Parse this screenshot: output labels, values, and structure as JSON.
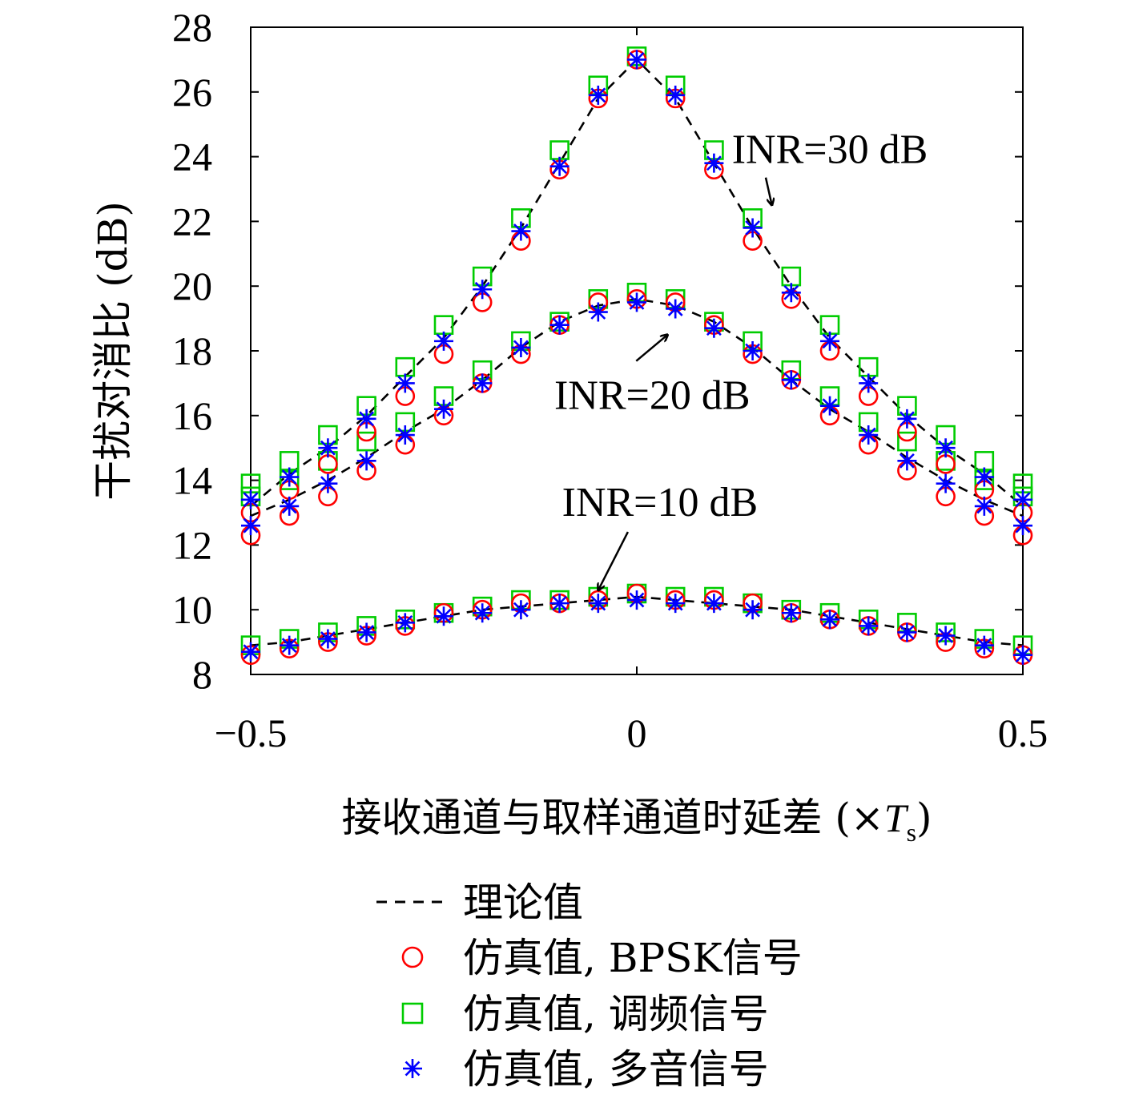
{
  "chart_data": {
    "type": "scatter",
    "xlabel": "接收通道与取样通道时延差 (×",
    "xlabel_unit_main": "T",
    "xlabel_unit_sub": "s",
    "xlabel_close": ")",
    "ylabel": "干扰对消比 (dB)",
    "xlim": [
      -0.5,
      0.5
    ],
    "ylim": [
      8,
      28
    ],
    "x_ticks": [
      -0.5,
      0,
      0.5
    ],
    "x_tick_labels": [
      "−0.5",
      "0",
      "0.5"
    ],
    "y_ticks": [
      8,
      10,
      12,
      14,
      16,
      18,
      20,
      22,
      24,
      26,
      28
    ],
    "grid": false,
    "legend_position": "below",
    "annotations": [
      {
        "text": "INR=30 dB",
        "x": 0.25,
        "y": 23.8,
        "arrow_to_x": 0.175,
        "arrow_to_y": 22.5
      },
      {
        "text": "INR=20 dB",
        "x": 0.02,
        "y": 16.2,
        "arrow_to_x": 0.04,
        "arrow_to_y": 18.5
      },
      {
        "text": "INR=10 dB",
        "x": 0.03,
        "y": 12.9,
        "arrow_to_x": -0.05,
        "arrow_to_y": 10.6
      }
    ],
    "x": [
      -0.5,
      -0.45,
      -0.4,
      -0.35,
      -0.3,
      -0.25,
      -0.2,
      -0.15,
      -0.1,
      -0.05,
      0,
      0.05,
      0.1,
      0.15,
      0.2,
      0.25,
      0.3,
      0.35,
      0.4,
      0.45,
      0.5
    ],
    "series": [
      {
        "name": "理论值",
        "style": "dashed-line",
        "color": "#000000",
        "groups": [
          {
            "inr": "INR=30 dB",
            "values": [
              13.2,
              14.2,
              15.0,
              16.0,
              17.2,
              18.4,
              20.0,
              21.8,
              23.8,
              25.8,
              27.0,
              25.8,
              23.8,
              21.8,
              20.0,
              18.4,
              17.2,
              16.0,
              15.0,
              14.2,
              13.2
            ]
          },
          {
            "inr": "INR=20 dB",
            "values": [
              12.9,
              13.4,
              14.0,
              14.7,
              15.5,
              16.2,
              17.1,
              18.1,
              18.9,
              19.4,
              19.6,
              19.4,
              18.9,
              18.1,
              17.1,
              16.2,
              15.5,
              14.7,
              14.0,
              13.4,
              12.9
            ]
          },
          {
            "inr": "INR=10 dB",
            "values": [
              8.9,
              9.0,
              9.2,
              9.4,
              9.6,
              9.8,
              10.0,
              10.1,
              10.2,
              10.3,
              10.4,
              10.3,
              10.2,
              10.1,
              10.0,
              9.8,
              9.6,
              9.4,
              9.2,
              9.0,
              8.9
            ]
          }
        ]
      },
      {
        "name": "仿真值, BPSK信号",
        "style": "circle",
        "color": "#ff0000",
        "groups": [
          {
            "inr": "INR=30 dB",
            "values": [
              13.0,
              13.7,
              14.5,
              15.5,
              16.6,
              17.9,
              19.5,
              21.4,
              23.6,
              25.8,
              27.0,
              25.8,
              23.6,
              21.4,
              19.6,
              18.0,
              16.6,
              15.5,
              14.5,
              13.7,
              13.0
            ]
          },
          {
            "inr": "INR=20 dB",
            "values": [
              12.3,
              12.9,
              13.5,
              14.3,
              15.1,
              16.0,
              17.0,
              17.9,
              18.8,
              19.5,
              19.6,
              19.5,
              18.8,
              17.9,
              17.1,
              16.0,
              15.1,
              14.3,
              13.5,
              12.9,
              12.3
            ]
          },
          {
            "inr": "INR=10 dB",
            "values": [
              8.6,
              8.8,
              9.0,
              9.2,
              9.5,
              9.9,
              10.0,
              10.2,
              10.2,
              10.3,
              10.5,
              10.3,
              10.3,
              10.2,
              9.9,
              9.7,
              9.5,
              9.3,
              9.0,
              8.8,
              8.6
            ]
          }
        ]
      },
      {
        "name": "仿真值, 调频信号",
        "style": "square",
        "color": "#00cc00",
        "groups": [
          {
            "inr": "INR=30 dB",
            "values": [
              13.9,
              14.6,
              15.4,
              16.3,
              17.5,
              18.8,
              20.3,
              22.1,
              24.2,
              26.2,
              27.1,
              26.2,
              24.2,
              22.1,
              20.3,
              18.8,
              17.5,
              16.3,
              15.4,
              14.6,
              13.9
            ]
          },
          {
            "inr": "INR=20 dB",
            "values": [
              13.5,
              14.0,
              14.6,
              15.2,
              15.8,
              16.6,
              17.4,
              18.3,
              18.9,
              19.6,
              19.8,
              19.6,
              18.9,
              18.3,
              17.4,
              16.6,
              15.8,
              15.2,
              14.6,
              14.0,
              13.5
            ]
          },
          {
            "inr": "INR=10 dB",
            "values": [
              8.9,
              9.1,
              9.3,
              9.5,
              9.7,
              9.9,
              10.1,
              10.3,
              10.3,
              10.4,
              10.5,
              10.4,
              10.4,
              10.2,
              10.0,
              9.9,
              9.7,
              9.6,
              9.3,
              9.1,
              8.9
            ]
          }
        ]
      },
      {
        "name": "仿真值, 多音信号",
        "style": "asterisk",
        "color": "#0000ff",
        "groups": [
          {
            "inr": "INR=30 dB",
            "values": [
              13.4,
              14.1,
              15.0,
              15.9,
              17.0,
              18.3,
              19.9,
              21.7,
              23.7,
              25.9,
              27.0,
              25.9,
              23.8,
              21.8,
              19.8,
              18.3,
              17.0,
              15.9,
              15.0,
              14.1,
              13.4
            ]
          },
          {
            "inr": "INR=20 dB",
            "values": [
              12.6,
              13.2,
              13.9,
              14.6,
              15.4,
              16.2,
              17.0,
              18.1,
              18.8,
              19.2,
              19.5,
              19.3,
              18.7,
              18.0,
              17.1,
              16.3,
              15.4,
              14.6,
              13.9,
              13.2,
              12.6
            ]
          },
          {
            "inr": "INR=10 dB",
            "values": [
              8.7,
              8.9,
              9.1,
              9.3,
              9.6,
              9.8,
              9.9,
              10.0,
              10.2,
              10.2,
              10.3,
              10.2,
              10.2,
              10.0,
              9.9,
              9.7,
              9.5,
              9.3,
              9.2,
              8.9,
              8.6
            ]
          }
        ]
      }
    ]
  }
}
